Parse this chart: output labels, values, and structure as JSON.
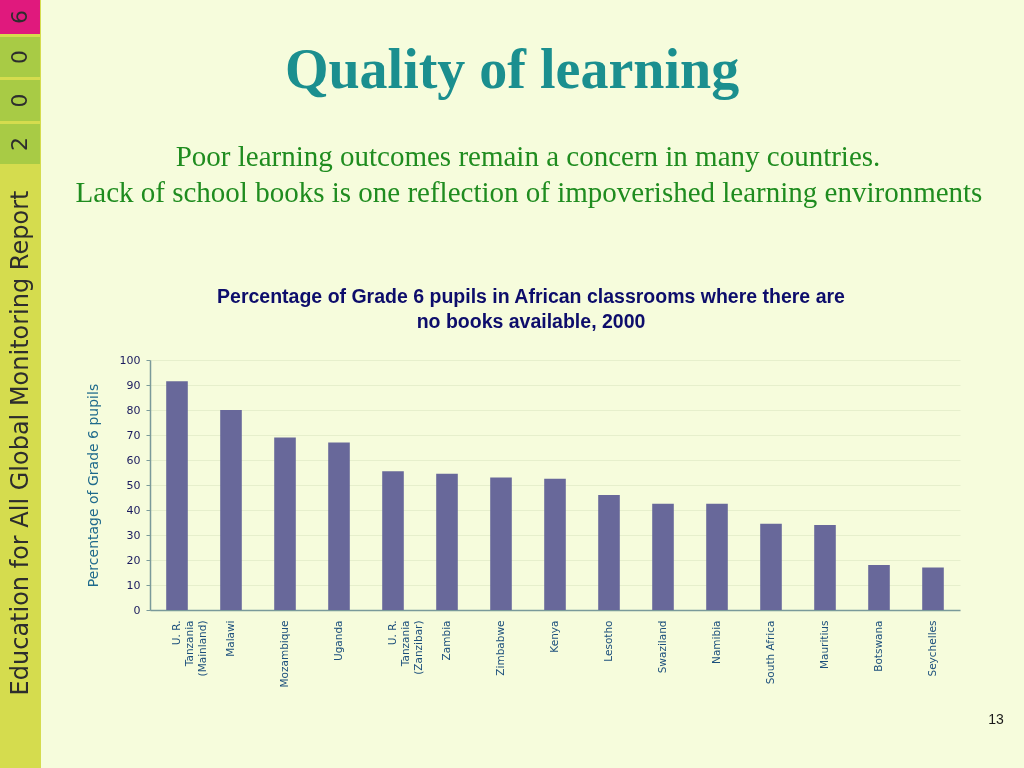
{
  "chart_data": {
    "type": "bar",
    "title": "Percentage of Grade 6 pupils in African classrooms where there are no books available, 2000",
    "ylabel": "Percentage of Grade 6 pupils",
    "categories": [
      "U. R. Tanzania (Mainland)",
      "Malawi",
      "Mozambique",
      "Uganda",
      "U. R. Tanzania (Zanzibar)",
      "Zambia",
      "Zimbabwe",
      "Kenya",
      "Lesotho",
      "Swaziland",
      "Namibia",
      "South Africa",
      "Mauritius",
      "Botswana",
      "Seychelles"
    ],
    "values": [
      91.5,
      80,
      69,
      67,
      55.5,
      54.5,
      53,
      52.5,
      46,
      42.5,
      42.5,
      34.5,
      34,
      18,
      17
    ],
    "color": "#68689a",
    "ylim": [
      0,
      100
    ],
    "yticks": [
      0,
      10,
      20,
      30,
      40,
      50,
      60,
      70,
      80,
      90,
      100
    ],
    "grid": "y",
    "annotations": [
      "Quality of learning",
      "Poor learning outcomes remain a concern in many countries.",
      "Lack of school books is one reflection of impoverished learning environments",
      "Education for All Global Monitoring Report",
      "2006",
      "13"
    ]
  }
}
